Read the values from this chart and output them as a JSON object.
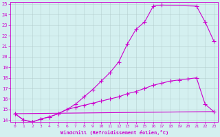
{
  "xlabel": "Windchill (Refroidissement éolien,°C)",
  "bg_color": "#d4f0f0",
  "grid_color": "#b0c8c8",
  "line_color": "#cc00cc",
  "xlim": [
    -0.5,
    23.5
  ],
  "ylim": [
    13.8,
    25.2
  ],
  "xticks": [
    0,
    1,
    2,
    3,
    4,
    5,
    6,
    7,
    8,
    9,
    10,
    11,
    12,
    13,
    14,
    15,
    16,
    17,
    18,
    19,
    20,
    21,
    22,
    23
  ],
  "yticks": [
    14,
    15,
    16,
    17,
    18,
    19,
    20,
    21,
    22,
    23,
    24,
    25
  ],
  "line1_x": [
    0,
    1,
    2,
    3,
    4,
    5,
    6,
    7,
    8,
    9,
    10,
    11,
    12,
    13,
    14,
    15,
    16,
    17,
    21,
    22,
    23
  ],
  "line1_y": [
    14.6,
    14.0,
    13.8,
    14.1,
    14.3,
    14.6,
    15.0,
    15.5,
    16.2,
    16.9,
    17.7,
    18.5,
    19.5,
    21.2,
    22.6,
    23.3,
    24.8,
    24.9,
    24.8,
    23.3,
    21.5
  ],
  "line2_x": [
    0,
    1,
    2,
    3,
    4,
    5,
    6,
    7,
    8,
    9,
    10,
    11,
    12,
    13,
    14,
    15,
    16,
    17,
    18,
    19,
    20,
    21,
    22,
    23
  ],
  "line2_y": [
    14.6,
    14.0,
    13.8,
    14.1,
    14.3,
    14.6,
    15.0,
    15.2,
    15.4,
    15.6,
    15.8,
    16.0,
    16.2,
    16.5,
    16.7,
    17.0,
    17.3,
    17.5,
    17.7,
    17.8,
    17.9,
    18.0,
    15.5,
    14.8
  ],
  "line3_x": [
    0,
    23
  ],
  "line3_y": [
    14.6,
    14.8
  ],
  "marker": "+",
  "marker_size": 4,
  "linewidth": 0.8
}
